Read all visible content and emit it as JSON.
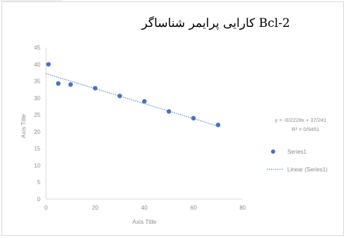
{
  "chart_data": {
    "type": "scatter",
    "title": "کارایی پرایمر شناساگر Bcl-2",
    "xlabel": "Axis Title",
    "ylabel": "Axis Title",
    "xlim": [
      0,
      80
    ],
    "ylim": [
      0,
      45
    ],
    "xticks": [
      "0",
      "20",
      "40",
      "60",
      "80"
    ],
    "yticks": [
      "0",
      "5",
      "10",
      "15",
      "20",
      "25",
      "30",
      "35",
      "40",
      "45"
    ],
    "grid": false,
    "legend_position": "right",
    "series": [
      {
        "name": "Series1",
        "color": "#4472c4",
        "x": [
          1,
          5,
          10,
          20,
          30,
          40,
          50,
          60,
          70
        ],
        "y": [
          40,
          34.3,
          34,
          32.9,
          30.6,
          29,
          26,
          24,
          22
        ]
      }
    ],
    "trendline": {
      "name": "Linear (Series1)",
      "color": "#4472c4",
      "style": "dotted",
      "slope": -0.2228,
      "intercept": 37.241,
      "x_range": [
        0,
        70
      ],
      "equation": "y = -0/2228x + 37/241",
      "r_squared": "R² = 0/9451"
    }
  }
}
